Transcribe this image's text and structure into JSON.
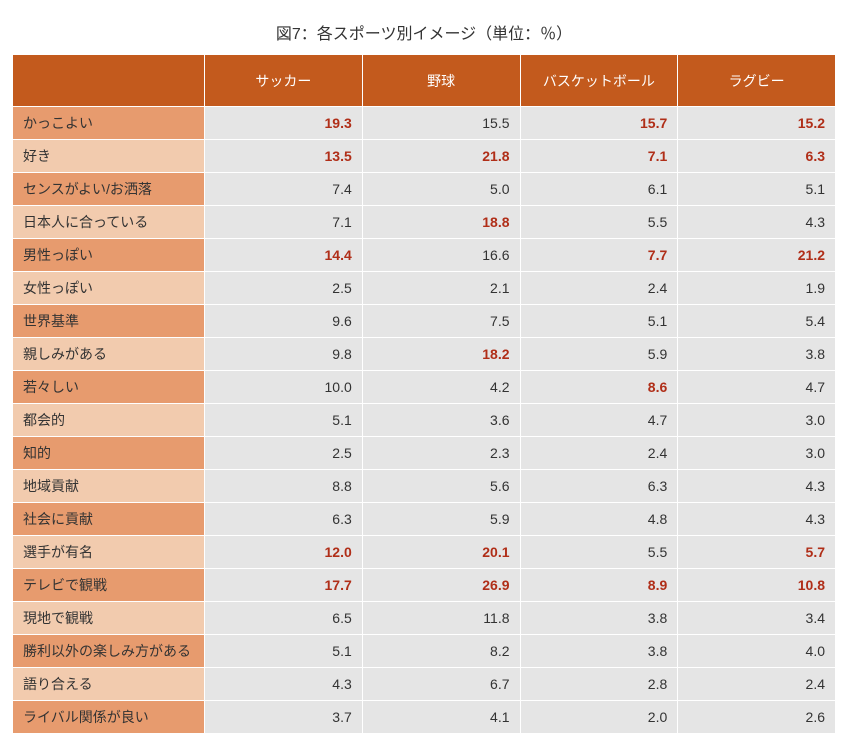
{
  "title": "図7：各スポーツ別イメージ（単位：％）",
  "colors": {
    "header_bg": "#c35a1d",
    "header_fg": "#ffffff",
    "row_label_odd": "#e79b6e",
    "row_label_even": "#f2cbae",
    "cell_bg": "#e5e5e5",
    "highlight": "#b02e18",
    "border": "#ffffff"
  },
  "columns": [
    "",
    "サッカー",
    "野球",
    "バスケットボール",
    "ラグビー"
  ],
  "rows": [
    {
      "label": "かっこよい",
      "values": [
        "19.3",
        "15.5",
        "15.7",
        "15.2"
      ],
      "highlight": [
        true,
        false,
        true,
        true
      ]
    },
    {
      "label": "好き",
      "values": [
        "13.5",
        "21.8",
        "7.1",
        "6.3"
      ],
      "highlight": [
        true,
        true,
        true,
        true
      ]
    },
    {
      "label": "センスがよい/お洒落",
      "values": [
        "7.4",
        "5.0",
        "6.1",
        "5.1"
      ],
      "highlight": [
        false,
        false,
        false,
        false
      ]
    },
    {
      "label": "日本人に合っている",
      "values": [
        "7.1",
        "18.8",
        "5.5",
        "4.3"
      ],
      "highlight": [
        false,
        true,
        false,
        false
      ]
    },
    {
      "label": "男性っぽい",
      "values": [
        "14.4",
        "16.6",
        "7.7",
        "21.2"
      ],
      "highlight": [
        true,
        false,
        true,
        true
      ]
    },
    {
      "label": "女性っぽい",
      "values": [
        "2.5",
        "2.1",
        "2.4",
        "1.9"
      ],
      "highlight": [
        false,
        false,
        false,
        false
      ]
    },
    {
      "label": "世界基準",
      "values": [
        "9.6",
        "7.5",
        "5.1",
        "5.4"
      ],
      "highlight": [
        false,
        false,
        false,
        false
      ]
    },
    {
      "label": "親しみがある",
      "values": [
        "9.8",
        "18.2",
        "5.9",
        "3.8"
      ],
      "highlight": [
        false,
        true,
        false,
        false
      ]
    },
    {
      "label": "若々しい",
      "values": [
        "10.0",
        "4.2",
        "8.6",
        "4.7"
      ],
      "highlight": [
        false,
        false,
        true,
        false
      ]
    },
    {
      "label": "都会的",
      "values": [
        "5.1",
        "3.6",
        "4.7",
        "3.0"
      ],
      "highlight": [
        false,
        false,
        false,
        false
      ]
    },
    {
      "label": "知的",
      "values": [
        "2.5",
        "2.3",
        "2.4",
        "3.0"
      ],
      "highlight": [
        false,
        false,
        false,
        false
      ]
    },
    {
      "label": "地域貢献",
      "values": [
        "8.8",
        "5.6",
        "6.3",
        "4.3"
      ],
      "highlight": [
        false,
        false,
        false,
        false
      ]
    },
    {
      "label": "社会に貢献",
      "values": [
        "6.3",
        "5.9",
        "4.8",
        "4.3"
      ],
      "highlight": [
        false,
        false,
        false,
        false
      ]
    },
    {
      "label": "選手が有名",
      "values": [
        "12.0",
        "20.1",
        "5.5",
        "5.7"
      ],
      "highlight": [
        true,
        true,
        false,
        true
      ]
    },
    {
      "label": "テレビで観戦",
      "values": [
        "17.7",
        "26.9",
        "8.9",
        "10.8"
      ],
      "highlight": [
        true,
        true,
        true,
        true
      ]
    },
    {
      "label": "現地で観戦",
      "values": [
        "6.5",
        "11.8",
        "3.8",
        "3.4"
      ],
      "highlight": [
        false,
        false,
        false,
        false
      ]
    },
    {
      "label": "勝利以外の楽しみ方がある",
      "values": [
        "5.1",
        "8.2",
        "3.8",
        "4.0"
      ],
      "highlight": [
        false,
        false,
        false,
        false
      ]
    },
    {
      "label": "語り合える",
      "values": [
        "4.3",
        "6.7",
        "2.8",
        "2.4"
      ],
      "highlight": [
        false,
        false,
        false,
        false
      ]
    },
    {
      "label": "ライバル関係が良い",
      "values": [
        "3.7",
        "4.1",
        "2.0",
        "2.6"
      ],
      "highlight": [
        false,
        false,
        false,
        false
      ]
    }
  ]
}
